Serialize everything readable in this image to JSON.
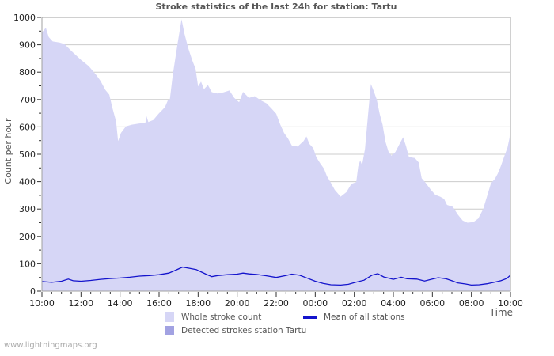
{
  "title": "Stroke statistics of the last 24h for station: Tartu",
  "watermark": "www.lightningmaps.org",
  "axes": {
    "y_label": "Count per hour",
    "x_label": "Time",
    "y_tick_labels": [
      "0",
      "100",
      "200",
      "300",
      "400",
      "500",
      "600",
      "700",
      "800",
      "900",
      "1000"
    ],
    "x_tick_labels": [
      "10:00",
      "12:00",
      "14:00",
      "16:00",
      "18:00",
      "20:00",
      "22:00",
      "00:00",
      "02:00",
      "04:00",
      "06:00",
      "08:00",
      "10:00"
    ]
  },
  "legend": {
    "items": [
      {
        "label": "Whole stroke count",
        "swatch": "area-light"
      },
      {
        "label": "Detected strokes station Tartu",
        "swatch": "area-dark"
      },
      {
        "label": "Mean of all stations",
        "swatch": "line"
      }
    ]
  },
  "colors": {
    "area_light": "#d6d6f6",
    "area_dark": "#a2a2e2",
    "mean_line": "#1414cc",
    "grid": "#cccccc",
    "plot_border": "#a0a0a0",
    "tick": "#333333",
    "tick_label": "#222222",
    "title": "#555555",
    "watermark": "#aaaaaa"
  },
  "chart_data": {
    "type": "area",
    "title": "Stroke statistics of the last 24h for station: Tartu",
    "xlabel": "Time",
    "ylabel": "Count per hour",
    "ylim": [
      0,
      1000
    ],
    "x_axis": {
      "start_label": "10:00",
      "end_label": "10:00",
      "span_hours": 24,
      "major_tick_hours": 2,
      "minor_tick_hours": 0.5
    },
    "grid": "horizontal-100s",
    "legend_position": "bottom",
    "series": [
      {
        "name": "Whole stroke count",
        "kind": "area",
        "color_key": "area_light",
        "points": [
          [
            0,
            945
          ],
          [
            0.2,
            962
          ],
          [
            0.35,
            928
          ],
          [
            0.55,
            912
          ],
          [
            0.9,
            908
          ],
          [
            1.15,
            903
          ],
          [
            1.5,
            878
          ],
          [
            2,
            845
          ],
          [
            2.4,
            822
          ],
          [
            2.8,
            788
          ],
          [
            3,
            768
          ],
          [
            3.25,
            735
          ],
          [
            3.45,
            718
          ],
          [
            3.6,
            672
          ],
          [
            3.8,
            620
          ],
          [
            3.9,
            548
          ],
          [
            4.05,
            578
          ],
          [
            4.3,
            602
          ],
          [
            4.6,
            608
          ],
          [
            4.95,
            612
          ],
          [
            5.3,
            615
          ],
          [
            5.35,
            640
          ],
          [
            5.45,
            618
          ],
          [
            5.7,
            625
          ],
          [
            6,
            650
          ],
          [
            6.3,
            672
          ],
          [
            6.45,
            697
          ],
          [
            6.55,
            700
          ],
          [
            6.7,
            790
          ],
          [
            6.8,
            835
          ],
          [
            6.95,
            905
          ],
          [
            7.15,
            993
          ],
          [
            7.3,
            940
          ],
          [
            7.5,
            886
          ],
          [
            7.7,
            843
          ],
          [
            7.87,
            812
          ],
          [
            8,
            748
          ],
          [
            8.15,
            765
          ],
          [
            8.3,
            738
          ],
          [
            8.5,
            753
          ],
          [
            8.7,
            727
          ],
          [
            9,
            722
          ],
          [
            9.3,
            726
          ],
          [
            9.6,
            733
          ],
          [
            9.85,
            706
          ],
          [
            10.1,
            690
          ],
          [
            10.3,
            728
          ],
          [
            10.6,
            706
          ],
          [
            10.9,
            712
          ],
          [
            11.2,
            697
          ],
          [
            11.5,
            686
          ],
          [
            11.75,
            668
          ],
          [
            12,
            648
          ],
          [
            12.2,
            610
          ],
          [
            12.4,
            578
          ],
          [
            12.6,
            558
          ],
          [
            12.8,
            532
          ],
          [
            13.1,
            528
          ],
          [
            13.4,
            548
          ],
          [
            13.55,
            565
          ],
          [
            13.7,
            538
          ],
          [
            13.9,
            522
          ],
          [
            14.05,
            490
          ],
          [
            14.25,
            467
          ],
          [
            14.45,
            447
          ],
          [
            14.6,
            420
          ],
          [
            14.75,
            402
          ],
          [
            15,
            370
          ],
          [
            15.3,
            345
          ],
          [
            15.6,
            362
          ],
          [
            15.85,
            392
          ],
          [
            16.1,
            398
          ],
          [
            16.2,
            455
          ],
          [
            16.3,
            478
          ],
          [
            16.4,
            460
          ],
          [
            16.55,
            520
          ],
          [
            16.7,
            640
          ],
          [
            16.85,
            757
          ],
          [
            17,
            730
          ],
          [
            17.15,
            700
          ],
          [
            17.3,
            648
          ],
          [
            17.45,
            608
          ],
          [
            17.6,
            545
          ],
          [
            17.75,
            510
          ],
          [
            17.9,
            495
          ],
          [
            18.1,
            508
          ],
          [
            18.3,
            535
          ],
          [
            18.5,
            562
          ],
          [
            18.65,
            530
          ],
          [
            18.8,
            490
          ],
          [
            19.1,
            486
          ],
          [
            19.3,
            470
          ],
          [
            19.45,
            412
          ],
          [
            19.65,
            396
          ],
          [
            19.9,
            372
          ],
          [
            20.15,
            352
          ],
          [
            20.4,
            345
          ],
          [
            20.6,
            337
          ],
          [
            20.75,
            315
          ],
          [
            21.05,
            308
          ],
          [
            21.3,
            280
          ],
          [
            21.55,
            258
          ],
          [
            21.8,
            250
          ],
          [
            22.1,
            252
          ],
          [
            22.35,
            265
          ],
          [
            22.6,
            300
          ],
          [
            22.85,
            358
          ],
          [
            23,
            394
          ],
          [
            23.2,
            410
          ],
          [
            23.35,
            430
          ],
          [
            23.5,
            456
          ],
          [
            23.7,
            496
          ],
          [
            23.85,
            525
          ],
          [
            23.95,
            560
          ],
          [
            24,
            612
          ]
        ]
      },
      {
        "name": "Detected strokes station Tartu",
        "kind": "area",
        "color_key": "area_dark",
        "points": [
          [
            0,
            0
          ],
          [
            24,
            0
          ]
        ]
      },
      {
        "name": "Mean of all stations",
        "kind": "line",
        "color_key": "mean_line",
        "points": [
          [
            0,
            35
          ],
          [
            0.5,
            32
          ],
          [
            1,
            36
          ],
          [
            1.35,
            44
          ],
          [
            1.6,
            38
          ],
          [
            2,
            36
          ],
          [
            2.5,
            39
          ],
          [
            3,
            43
          ],
          [
            3.5,
            46
          ],
          [
            4,
            48
          ],
          [
            4.5,
            51
          ],
          [
            5,
            55
          ],
          [
            5.5,
            57
          ],
          [
            6,
            60
          ],
          [
            6.5,
            66
          ],
          [
            6.9,
            78
          ],
          [
            7.2,
            88
          ],
          [
            7.5,
            84
          ],
          [
            7.9,
            79
          ],
          [
            8.1,
            72
          ],
          [
            8.4,
            62
          ],
          [
            8.7,
            53
          ],
          [
            9,
            57
          ],
          [
            9.5,
            60
          ],
          [
            10,
            62
          ],
          [
            10.3,
            66
          ],
          [
            10.6,
            63
          ],
          [
            11,
            61
          ],
          [
            11.5,
            56
          ],
          [
            12,
            50
          ],
          [
            12.5,
            57
          ],
          [
            12.8,
            62
          ],
          [
            13.2,
            58
          ],
          [
            13.6,
            47
          ],
          [
            14,
            36
          ],
          [
            14.4,
            28
          ],
          [
            14.8,
            23
          ],
          [
            15.3,
            22
          ],
          [
            15.7,
            25
          ],
          [
            16,
            31
          ],
          [
            16.5,
            40
          ],
          [
            16.9,
            58
          ],
          [
            17.2,
            64
          ],
          [
            17.5,
            52
          ],
          [
            18,
            43
          ],
          [
            18.4,
            51
          ],
          [
            18.7,
            45
          ],
          [
            19.2,
            44
          ],
          [
            19.6,
            37
          ],
          [
            20,
            44
          ],
          [
            20.3,
            49
          ],
          [
            20.7,
            45
          ],
          [
            21,
            38
          ],
          [
            21.3,
            30
          ],
          [
            21.7,
            26
          ],
          [
            22,
            22
          ],
          [
            22.4,
            23
          ],
          [
            22.8,
            27
          ],
          [
            23.2,
            33
          ],
          [
            23.5,
            38
          ],
          [
            23.8,
            46
          ],
          [
            24,
            58
          ]
        ]
      }
    ]
  }
}
